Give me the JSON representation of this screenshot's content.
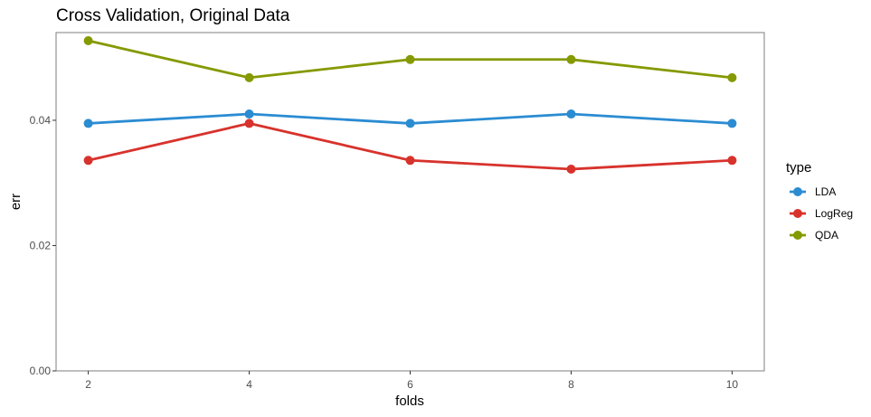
{
  "chart_data": {
    "type": "line",
    "title": "Cross Validation, Original Data",
    "xlabel": "folds",
    "ylabel": "err",
    "x": [
      2,
      4,
      6,
      8,
      10
    ],
    "xticks": [
      "2",
      "4",
      "6",
      "8",
      "10"
    ],
    "yticks": [
      "0.00",
      "0.02",
      "0.04"
    ],
    "ylim": [
      0,
      0.054
    ],
    "xlim": [
      1.6,
      10.4
    ],
    "grid": false,
    "legend": {
      "title": "type",
      "position": "right"
    },
    "series": [
      {
        "name": "LDA",
        "color": "#2b8cd2",
        "values": [
          0.0395,
          0.041,
          0.0395,
          0.041,
          0.0395
        ]
      },
      {
        "name": "LogReg",
        "color": "#d8322c",
        "values": [
          0.0336,
          0.0395,
          0.0336,
          0.0322,
          0.0336
        ]
      },
      {
        "name": "QDA",
        "color": "#859900",
        "values": [
          0.0527,
          0.0468,
          0.0497,
          0.0497,
          0.0468
        ]
      }
    ]
  }
}
